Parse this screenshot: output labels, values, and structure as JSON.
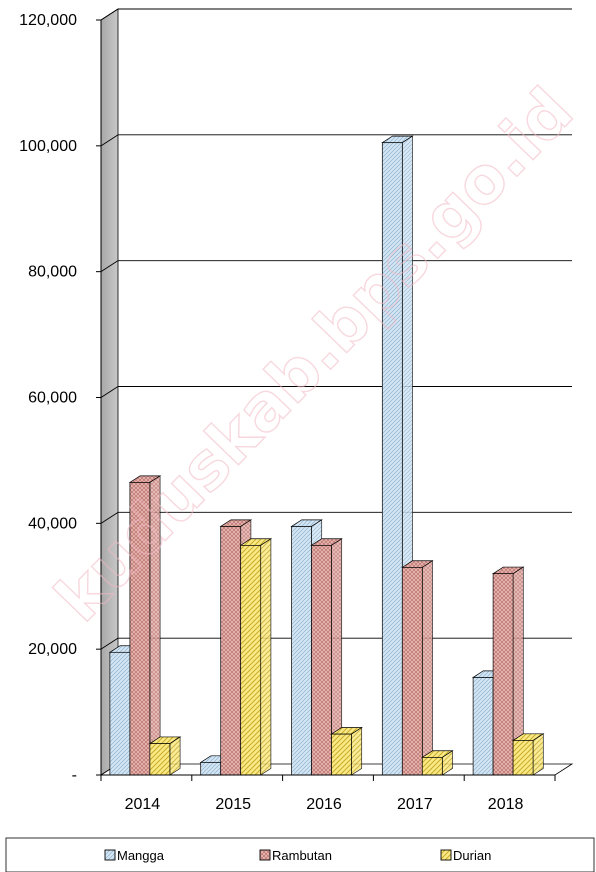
{
  "chart_data": {
    "type": "bar",
    "categories": [
      "2014",
      "2015",
      "2016",
      "2017",
      "2018"
    ],
    "series": [
      {
        "name": "Mangga",
        "values": [
          19500,
          2000,
          39500,
          100500,
          15500
        ],
        "color": "#c9dff0",
        "pattern": "diagonal-hatch"
      },
      {
        "name": "Rambutan",
        "values": [
          46500,
          39500,
          36500,
          33000,
          32000
        ],
        "color": "#e3a8a4",
        "pattern": "cross-hatch"
      },
      {
        "name": "Durian",
        "values": [
          5000,
          36500,
          6500,
          2800,
          5500
        ],
        "color": "#f7e36a",
        "pattern": "diagonal-hatch"
      }
    ],
    "ylim": [
      0,
      120000
    ],
    "yticks": [
      0,
      20000,
      40000,
      60000,
      80000,
      100000,
      120000
    ],
    "ytick_labels": [
      "-",
      "20,000",
      "40,000",
      "60,000",
      "80,000",
      "100,000",
      "120,000"
    ],
    "grid": true,
    "legend_position": "bottom",
    "style": "3d-clustered-column"
  },
  "watermark": "kuduskab.bps.go.id"
}
